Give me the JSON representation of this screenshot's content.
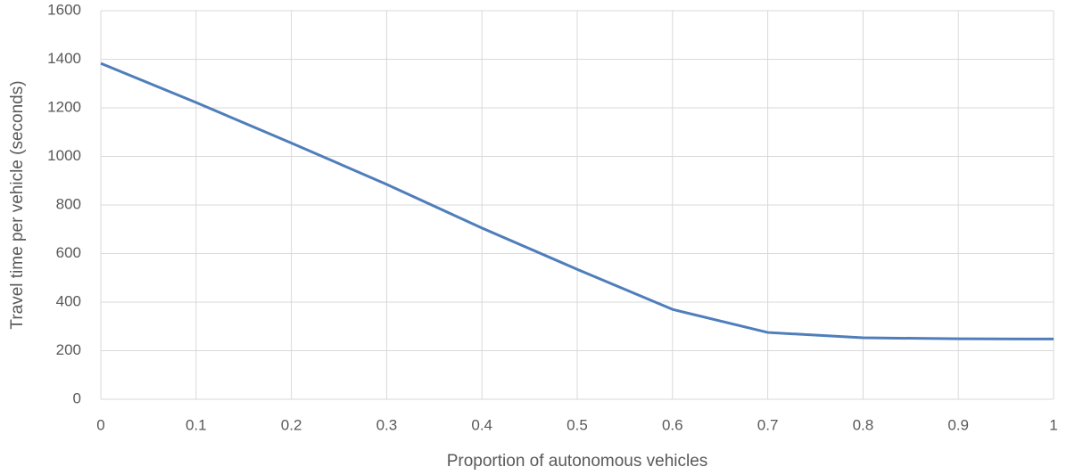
{
  "chart_data": {
    "type": "line",
    "x_label": "Proportion of autonomous vehicles",
    "y_label": "Travel time per vehicle (seconds)",
    "x": [
      0,
      0.1,
      0.2,
      0.3,
      0.4,
      0.5,
      0.6,
      0.7,
      0.8,
      0.9,
      1
    ],
    "series": [
      {
        "color": "#4f7ebb",
        "values": [
          1383,
          1222,
          1055,
          885,
          705,
          535,
          370,
          275,
          253,
          249,
          248
        ]
      }
    ],
    "xlim": [
      0,
      1
    ],
    "xticks": [
      0,
      0.1,
      0.2,
      0.3,
      0.4,
      0.5,
      0.6,
      0.7,
      0.8,
      0.9,
      1
    ],
    "ylim": [
      0,
      1600
    ],
    "yticks": [
      0,
      200,
      400,
      600,
      800,
      1000,
      1200,
      1400,
      1600
    ],
    "grid": true
  }
}
